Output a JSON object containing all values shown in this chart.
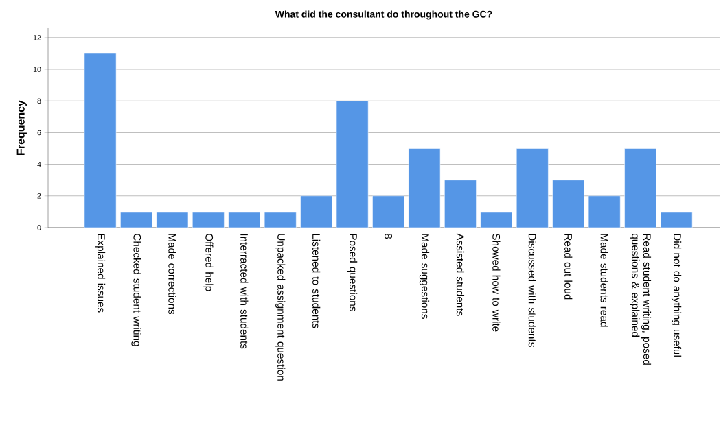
{
  "chart_data": {
    "type": "bar",
    "title": "What did the consultant do throughout the GC?",
    "ylabel": "Frequency",
    "categories": [
      "Explained issues",
      "Checked student writing",
      "Made corrections",
      "Offered help",
      "Interracted with students",
      "Unpacked assignment question",
      "Listened to students",
      "Posed questions",
      "8",
      "Made suggestions",
      "Assisted students",
      "Showed how to write",
      "Discussed with students",
      "Read out loud",
      "Made students read",
      "Read student writing, posed questions & explained",
      "Did not do anything useful"
    ],
    "values": [
      11,
      1,
      1,
      1,
      1,
      1,
      2,
      8,
      2,
      5,
      3,
      1,
      5,
      3,
      2,
      5,
      1
    ],
    "color": "#5596e6",
    "ylim": [
      0,
      12.6
    ],
    "yticks": [
      0,
      2,
      4,
      6,
      8,
      10,
      12
    ],
    "grid": "y"
  }
}
